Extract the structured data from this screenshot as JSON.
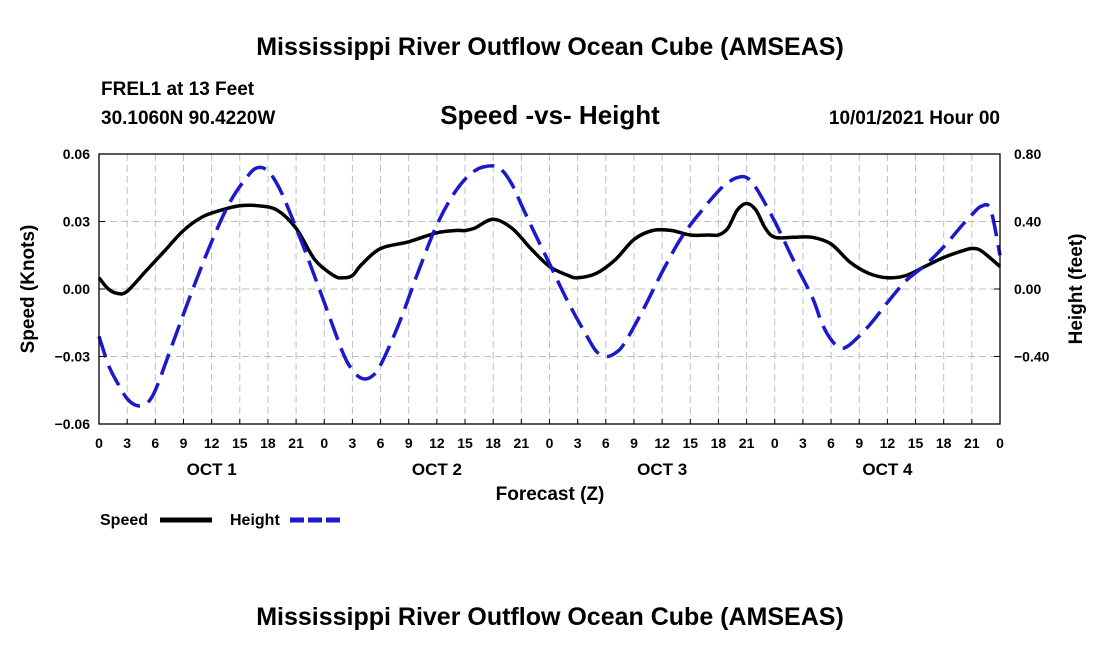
{
  "page": {
    "title_top": "Mississippi River Outflow Ocean Cube (AMSEAS)",
    "title_bottom": "Mississippi River Outflow Ocean Cube (AMSEAS)",
    "station": "FREL1 at 13 Feet",
    "coords": "30.1060N  90.4220W",
    "datetime": "10/01/2021 Hour 00"
  },
  "colors": {
    "speed": "#000000",
    "height": "#1a1acc",
    "grid": "#bfbfbf"
  },
  "chart_data": {
    "type": "line",
    "title": "Speed -vs- Height",
    "xlabel": "Forecast (Z)",
    "ylabel_left": "Speed (Knots)",
    "ylabel_right": "Height (feet)",
    "x_range": [
      0,
      96
    ],
    "ylim_left": [
      -0.06,
      0.06
    ],
    "ylim_right": [
      -0.8,
      0.8
    ],
    "yticks_left": [
      {
        "v": 0.06,
        "label": "0.06"
      },
      {
        "v": 0.03,
        "label": "0.03"
      },
      {
        "v": 0.0,
        "label": "0.00"
      },
      {
        "v": -0.03,
        "label": "−0.03"
      },
      {
        "v": -0.06,
        "label": "−0.06"
      }
    ],
    "yticks_right": [
      {
        "v": 0.8,
        "label": "0.80"
      },
      {
        "v": 0.4,
        "label": "0.40"
      },
      {
        "v": 0.0,
        "label": "0.00"
      },
      {
        "v": -0.4,
        "label": "−0.40"
      }
    ],
    "xticks": [
      {
        "x": 0,
        "label": "0"
      },
      {
        "x": 3,
        "label": "3"
      },
      {
        "x": 6,
        "label": "6"
      },
      {
        "x": 9,
        "label": "9"
      },
      {
        "x": 12,
        "label": "12"
      },
      {
        "x": 15,
        "label": "15"
      },
      {
        "x": 18,
        "label": "18"
      },
      {
        "x": 21,
        "label": "21"
      },
      {
        "x": 24,
        "label": "0"
      },
      {
        "x": 27,
        "label": "3"
      },
      {
        "x": 30,
        "label": "6"
      },
      {
        "x": 33,
        "label": "9"
      },
      {
        "x": 36,
        "label": "12"
      },
      {
        "x": 39,
        "label": "15"
      },
      {
        "x": 42,
        "label": "18"
      },
      {
        "x": 45,
        "label": "21"
      },
      {
        "x": 48,
        "label": "0"
      },
      {
        "x": 51,
        "label": "3"
      },
      {
        "x": 54,
        "label": "6"
      },
      {
        "x": 57,
        "label": "9"
      },
      {
        "x": 60,
        "label": "12"
      },
      {
        "x": 63,
        "label": "15"
      },
      {
        "x": 66,
        "label": "18"
      },
      {
        "x": 69,
        "label": "21"
      },
      {
        "x": 72,
        "label": "0"
      },
      {
        "x": 75,
        "label": "3"
      },
      {
        "x": 78,
        "label": "6"
      },
      {
        "x": 81,
        "label": "9"
      },
      {
        "x": 84,
        "label": "12"
      },
      {
        "x": 87,
        "label": "15"
      },
      {
        "x": 90,
        "label": "18"
      },
      {
        "x": 93,
        "label": "21"
      },
      {
        "x": 96,
        "label": "0"
      }
    ],
    "day_labels": [
      {
        "x": 12,
        "label": "OCT 1"
      },
      {
        "x": 36,
        "label": "OCT 2"
      },
      {
        "x": 60,
        "label": "OCT 3"
      },
      {
        "x": 84,
        "label": "OCT 4"
      }
    ],
    "grid": true,
    "series": [
      {
        "name": "Speed",
        "axis": "left",
        "style": "solid",
        "x": [
          0,
          1,
          2,
          3,
          5,
          7,
          9,
          11,
          13,
          15,
          17,
          19,
          21,
          23,
          25,
          26,
          27,
          28,
          30,
          33,
          36,
          38,
          39,
          40,
          42,
          44,
          46,
          48,
          50,
          51,
          53,
          55,
          57,
          59,
          61,
          63,
          65,
          66,
          67,
          68,
          69,
          70,
          71,
          72,
          74,
          76,
          78,
          80,
          82,
          84,
          86,
          88,
          90,
          92,
          93,
          94,
          96
        ],
        "y": [
          0.005,
          0.0,
          -0.002,
          -0.001,
          0.008,
          0.017,
          0.026,
          0.032,
          0.035,
          0.037,
          0.037,
          0.035,
          0.027,
          0.013,
          0.006,
          0.005,
          0.006,
          0.011,
          0.018,
          0.021,
          0.025,
          0.026,
          0.026,
          0.027,
          0.031,
          0.027,
          0.018,
          0.01,
          0.006,
          0.005,
          0.007,
          0.013,
          0.022,
          0.026,
          0.026,
          0.024,
          0.024,
          0.024,
          0.027,
          0.035,
          0.038,
          0.035,
          0.027,
          0.023,
          0.023,
          0.023,
          0.02,
          0.012,
          0.007,
          0.005,
          0.006,
          0.01,
          0.014,
          0.017,
          0.018,
          0.017,
          0.01
        ]
      },
      {
        "name": "Height",
        "axis": "right",
        "style": "dashed",
        "x": [
          0,
          1,
          2,
          3,
          4,
          5,
          6,
          8,
          10,
          12,
          14,
          16,
          17,
          18,
          19,
          20,
          22,
          24,
          26,
          27,
          28,
          29,
          30,
          32,
          34,
          36,
          38,
          40,
          42,
          43,
          44,
          45,
          46,
          48,
          50,
          52,
          53,
          54,
          55,
          56,
          58,
          60,
          62,
          64,
          66,
          67,
          68,
          69,
          70,
          72,
          74,
          76,
          77,
          78,
          79,
          80,
          82,
          84,
          86,
          88,
          90,
          92,
          93,
          94,
          95,
          96
        ],
        "y": [
          -0.28,
          -0.45,
          -0.56,
          -0.65,
          -0.69,
          -0.68,
          -0.6,
          -0.3,
          0.0,
          0.28,
          0.52,
          0.68,
          0.72,
          0.7,
          0.62,
          0.5,
          0.22,
          -0.08,
          -0.38,
          -0.48,
          -0.53,
          -0.52,
          -0.45,
          -0.2,
          0.1,
          0.38,
          0.58,
          0.7,
          0.73,
          0.7,
          0.62,
          0.5,
          0.38,
          0.15,
          -0.08,
          -0.28,
          -0.37,
          -0.4,
          -0.38,
          -0.32,
          -0.12,
          0.1,
          0.3,
          0.45,
          0.58,
          0.63,
          0.66,
          0.66,
          0.6,
          0.4,
          0.17,
          -0.05,
          -0.2,
          -0.3,
          -0.35,
          -0.33,
          -0.22,
          -0.08,
          0.05,
          0.14,
          0.25,
          0.38,
          0.44,
          0.49,
          0.47,
          0.2
        ]
      }
    ],
    "legend": [
      {
        "label": "Speed",
        "style": "solid"
      },
      {
        "label": "Height",
        "style": "dashed"
      }
    ]
  }
}
